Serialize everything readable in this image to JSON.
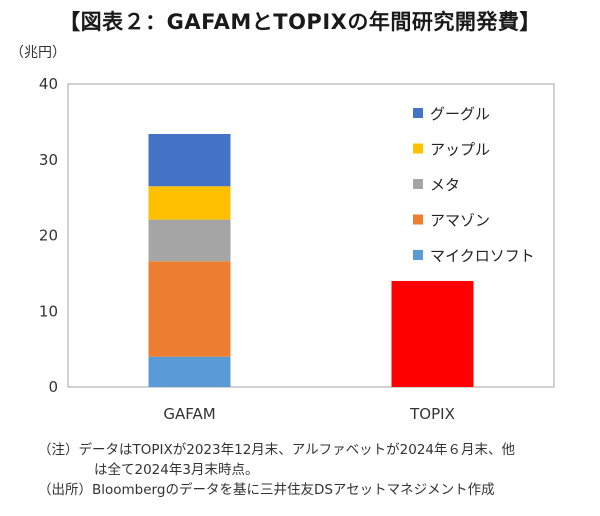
{
  "title": "【図表２：GAFAMとTOPIXの年間研究開発費】",
  "unit": "（兆円）",
  "notes": {
    "note_line1": "（注）データはTOPIXが2023年12月末、アルファベットが2024年６月末、他",
    "note_line2": "は全て2024年3月末時点。",
    "source": "（出所）Bloombergのデータを基に三井住友DSアセットマネジメント作成"
  },
  "chart_data": {
    "type": "bar",
    "stacked": true,
    "categories": [
      "GAFAM",
      "TOPIX"
    ],
    "ylim": [
      0,
      40
    ],
    "yticks": [
      0,
      10,
      20,
      30,
      40
    ],
    "grid": false,
    "legend_position": "top-right",
    "series": [
      {
        "name": "マイクロソフト",
        "color": "#5B9BD5",
        "values": [
          4.0,
          0
        ]
      },
      {
        "name": "アマゾン",
        "color": "#ED7D31",
        "values": [
          12.6,
          0
        ]
      },
      {
        "name": "メタ",
        "color": "#A5A5A5",
        "values": [
          5.5,
          0
        ]
      },
      {
        "name": "アップル",
        "color": "#FFC000",
        "values": [
          4.4,
          0
        ]
      },
      {
        "name": "グーグル",
        "color": "#4472C4",
        "values": [
          6.9,
          0
        ]
      },
      {
        "name": "TOPIX",
        "color": "#FF0000",
        "values": [
          0,
          14.0
        ]
      }
    ],
    "legend": [
      "グーグル",
      "アップル",
      "メタ",
      "アマゾン",
      "マイクロソフト"
    ]
  }
}
